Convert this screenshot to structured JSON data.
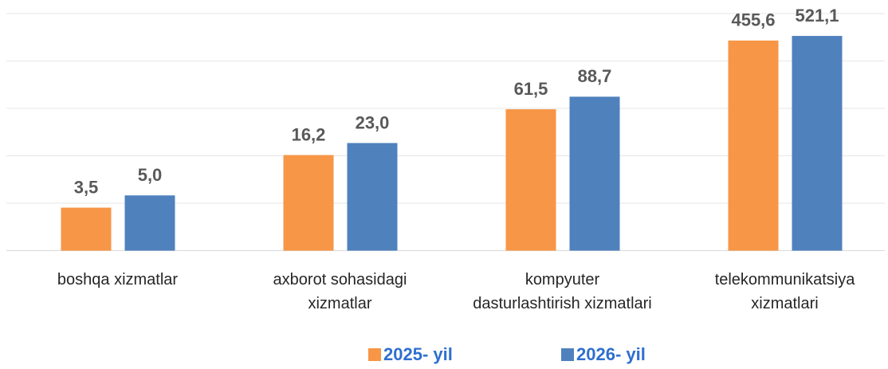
{
  "chart_data": {
    "type": "bar",
    "log_scale": true,
    "ylim": [
      1,
      1000
    ],
    "categories": [
      "boshqa xizmatlar",
      "axborot sohasidagi\nxizmatlar",
      "kompyuter\ndasturlashtirish xizmatlari",
      "telekommunikatsiya\nxizmatlari"
    ],
    "series": [
      {
        "name": "2025- yil",
        "color": "#f79646",
        "values": [
          3.5,
          16.2,
          61.5,
          455.6
        ],
        "value_labels": [
          "3,5",
          "16,2",
          "61,5",
          "455,6"
        ]
      },
      {
        "name": "2026- yil",
        "color": "#4f81bd",
        "values": [
          5.0,
          23.0,
          88.7,
          521.1
        ],
        "value_labels": [
          "5,0",
          "23,0",
          "88,7",
          "521,1"
        ]
      }
    ]
  }
}
